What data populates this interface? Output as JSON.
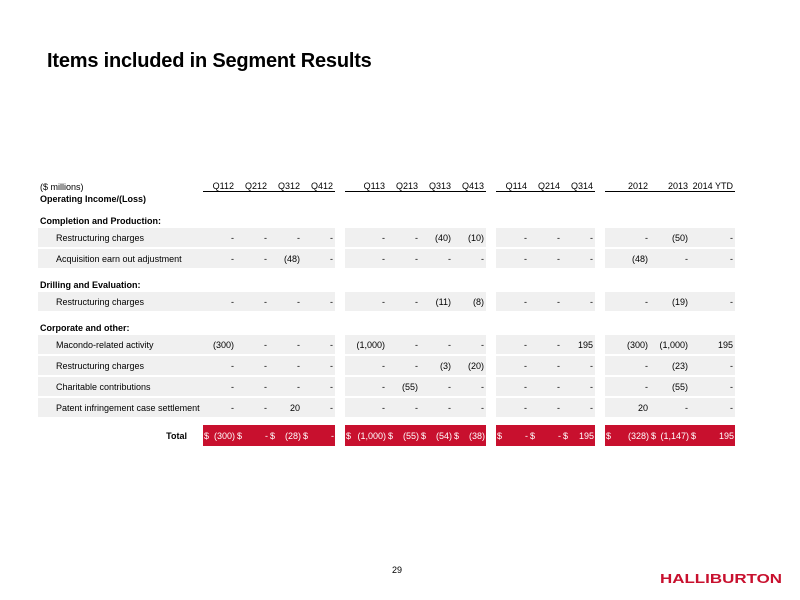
{
  "title": "Items included in Segment Results",
  "page_number": "29",
  "logo_text": "HALLIBURTON",
  "table": {
    "units_label": "($ millions)",
    "operating_label": "Operating Income/(Loss)",
    "columns": [
      "Q112",
      "Q212",
      "Q312",
      "Q412",
      "Q113",
      "Q213",
      "Q313",
      "Q413",
      "Q114",
      "Q214",
      "Q314",
      "2012",
      "2013",
      "2014 YTD"
    ],
    "sections": [
      {
        "name": "Completion and Production:",
        "rows": [
          {
            "label": "Restructuring charges",
            "values": [
              "-",
              "-",
              "-",
              "-",
              "-",
              "-",
              "(40)",
              "(10)",
              "-",
              "-",
              "-",
              "-",
              "(50)",
              "-"
            ]
          },
          {
            "label": "Acquisition earn out adjustment",
            "values": [
              "-",
              "-",
              "(48)",
              "-",
              "-",
              "-",
              "-",
              "-",
              "-",
              "-",
              "-",
              "(48)",
              "-",
              "-"
            ]
          }
        ]
      },
      {
        "name": "Drilling and Evaluation:",
        "rows": [
          {
            "label": "Restructuring charges",
            "values": [
              "-",
              "-",
              "-",
              "-",
              "-",
              "-",
              "(11)",
              "(8)",
              "-",
              "-",
              "-",
              "-",
              "(19)",
              "-"
            ]
          }
        ]
      },
      {
        "name": "Corporate and other:",
        "rows": [
          {
            "label": "Macondo-related activity",
            "values": [
              "(300)",
              "-",
              "-",
              "-",
              "(1,000)",
              "-",
              "-",
              "-",
              "-",
              "-",
              "195",
              "(300)",
              "(1,000)",
              "195"
            ]
          },
          {
            "label": "Restructuring charges",
            "values": [
              "-",
              "-",
              "-",
              "-",
              "-",
              "-",
              "(3)",
              "(20)",
              "-",
              "-",
              "-",
              "-",
              "(23)",
              "-"
            ]
          },
          {
            "label": "Charitable contributions",
            "values": [
              "-",
              "-",
              "-",
              "-",
              "-",
              "(55)",
              "-",
              "-",
              "-",
              "-",
              "-",
              "-",
              "(55)",
              "-"
            ]
          },
          {
            "label": "Patent infringement case settlement",
            "values": [
              "-",
              "-",
              "20",
              "-",
              "-",
              "-",
              "-",
              "-",
              "-",
              "-",
              "-",
              "20",
              "-",
              "-"
            ]
          }
        ]
      }
    ],
    "total": {
      "label": "Total",
      "values": [
        {
          "cur": "$",
          "val": "(300)"
        },
        {
          "cur": "$",
          "val": "-"
        },
        {
          "cur": "$",
          "val": "(28)"
        },
        {
          "cur": "$",
          "val": "-"
        },
        {
          "cur": "$",
          "val": "(1,000)"
        },
        {
          "cur": "$",
          "val": "(55)"
        },
        {
          "cur": "$",
          "val": "(54)"
        },
        {
          "cur": "$",
          "val": "(38)"
        },
        {
          "cur": "$",
          "val": "-"
        },
        {
          "cur": "$",
          "val": "-"
        },
        {
          "cur": "$",
          "val": "195"
        },
        {
          "cur": "$",
          "val": "(328)"
        },
        {
          "cur": "$",
          "val": "(1,147)"
        },
        {
          "cur": "$",
          "val": "195"
        }
      ]
    }
  },
  "colors": {
    "total_background": "#c8102e",
    "row_background": "#f0f0f0",
    "logo": "#c8102e"
  }
}
